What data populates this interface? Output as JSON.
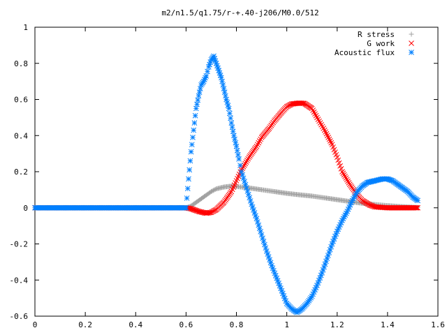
{
  "chart_data": {
    "type": "scatter",
    "title": "m2/n1.5/q1.75/r-+.40-j206/M0.0/512",
    "xlabel": "",
    "ylabel": "",
    "xlim": [
      0,
      1.6
    ],
    "ylim": [
      -0.6,
      1
    ],
    "x_ticks": [
      "0",
      "0.2",
      "0.4",
      "0.6",
      "0.8",
      "1",
      "1.2",
      "1.4",
      "1.6"
    ],
    "y_ticks": [
      "-0.6",
      "-0.4",
      "-0.2",
      "0",
      "0.2",
      "0.4",
      "0.6",
      "0.8",
      "1"
    ],
    "grid": false,
    "legend_position": "top-right",
    "series": [
      {
        "name": "R stress",
        "marker": "plus",
        "color": "#a0a0a0",
        "points": [
          [
            0,
            0
          ],
          [
            0.1,
            0
          ],
          [
            0.2,
            0
          ],
          [
            0.3,
            0
          ],
          [
            0.4,
            0
          ],
          [
            0.5,
            0
          ],
          [
            0.6,
            0
          ],
          [
            0.62,
            0.01
          ],
          [
            0.65,
            0.04
          ],
          [
            0.68,
            0.07
          ],
          [
            0.7,
            0.09
          ],
          [
            0.72,
            0.105
          ],
          [
            0.75,
            0.115
          ],
          [
            0.78,
            0.12
          ],
          [
            0.8,
            0.118
          ],
          [
            0.85,
            0.11
          ],
          [
            0.9,
            0.1
          ],
          [
            0.95,
            0.09
          ],
          [
            1.0,
            0.08
          ],
          [
            1.05,
            0.072
          ],
          [
            1.1,
            0.065
          ],
          [
            1.15,
            0.055
          ],
          [
            1.2,
            0.045
          ],
          [
            1.25,
            0.035
          ],
          [
            1.3,
            0.025
          ],
          [
            1.35,
            0.018
          ],
          [
            1.4,
            0.012
          ],
          [
            1.45,
            0.007
          ],
          [
            1.5,
            0.003
          ],
          [
            1.52,
            0.002
          ]
        ]
      },
      {
        "name": "G work",
        "marker": "cross",
        "color": "#ff0000",
        "points": [
          [
            0,
            0
          ],
          [
            0.2,
            0
          ],
          [
            0.4,
            0
          ],
          [
            0.6,
            0
          ],
          [
            0.62,
            -0.005
          ],
          [
            0.65,
            -0.02
          ],
          [
            0.68,
            -0.03
          ],
          [
            0.7,
            -0.025
          ],
          [
            0.72,
            -0.01
          ],
          [
            0.75,
            0.03
          ],
          [
            0.78,
            0.09
          ],
          [
            0.8,
            0.15
          ],
          [
            0.82,
            0.21
          ],
          [
            0.85,
            0.28
          ],
          [
            0.88,
            0.34
          ],
          [
            0.9,
            0.39
          ],
          [
            0.93,
            0.44
          ],
          [
            0.95,
            0.48
          ],
          [
            0.98,
            0.53
          ],
          [
            1.0,
            0.56
          ],
          [
            1.02,
            0.575
          ],
          [
            1.05,
            0.58
          ],
          [
            1.07,
            0.578
          ],
          [
            1.1,
            0.55
          ],
          [
            1.12,
            0.5
          ],
          [
            1.15,
            0.43
          ],
          [
            1.18,
            0.35
          ],
          [
            1.2,
            0.28
          ],
          [
            1.22,
            0.2
          ],
          [
            1.25,
            0.13
          ],
          [
            1.28,
            0.07
          ],
          [
            1.3,
            0.04
          ],
          [
            1.33,
            0.015
          ],
          [
            1.35,
            0.005
          ],
          [
            1.4,
            0
          ],
          [
            1.45,
            0
          ],
          [
            1.5,
            0
          ],
          [
            1.52,
            0
          ]
        ]
      },
      {
        "name": "Acoustic flux",
        "marker": "star",
        "color": "#0080ff",
        "points": [
          [
            0,
            0
          ],
          [
            0.1,
            0
          ],
          [
            0.2,
            0
          ],
          [
            0.3,
            0
          ],
          [
            0.4,
            0
          ],
          [
            0.5,
            0
          ],
          [
            0.6,
            0
          ],
          [
            0.61,
            0.16
          ],
          [
            0.62,
            0.31
          ],
          [
            0.63,
            0.43
          ],
          [
            0.64,
            0.55
          ],
          [
            0.65,
            0.62
          ],
          [
            0.66,
            0.68
          ],
          [
            0.67,
            0.7
          ],
          [
            0.68,
            0.73
          ],
          [
            0.69,
            0.78
          ],
          [
            0.7,
            0.82
          ],
          [
            0.71,
            0.84
          ],
          [
            0.72,
            0.8
          ],
          [
            0.73,
            0.76
          ],
          [
            0.74,
            0.72
          ],
          [
            0.75,
            0.66
          ],
          [
            0.76,
            0.6
          ],
          [
            0.77,
            0.55
          ],
          [
            0.78,
            0.47
          ],
          [
            0.79,
            0.4
          ],
          [
            0.8,
            0.34
          ],
          [
            0.81,
            0.27
          ],
          [
            0.82,
            0.2
          ],
          [
            0.84,
            0.11
          ],
          [
            0.86,
            0.02
          ],
          [
            0.88,
            -0.06
          ],
          [
            0.9,
            -0.15
          ],
          [
            0.92,
            -0.24
          ],
          [
            0.94,
            -0.32
          ],
          [
            0.96,
            -0.39
          ],
          [
            0.98,
            -0.46
          ],
          [
            1.0,
            -0.53
          ],
          [
            1.02,
            -0.56
          ],
          [
            1.04,
            -0.58
          ],
          [
            1.06,
            -0.56
          ],
          [
            1.08,
            -0.53
          ],
          [
            1.1,
            -0.49
          ],
          [
            1.12,
            -0.43
          ],
          [
            1.14,
            -0.36
          ],
          [
            1.16,
            -0.28
          ],
          [
            1.18,
            -0.2
          ],
          [
            1.2,
            -0.13
          ],
          [
            1.22,
            -0.07
          ],
          [
            1.24,
            -0.02
          ],
          [
            1.26,
            0.04
          ],
          [
            1.28,
            0.09
          ],
          [
            1.3,
            0.12
          ],
          [
            1.32,
            0.14
          ],
          [
            1.35,
            0.15
          ],
          [
            1.38,
            0.16
          ],
          [
            1.4,
            0.16
          ],
          [
            1.42,
            0.15
          ],
          [
            1.44,
            0.13
          ],
          [
            1.46,
            0.11
          ],
          [
            1.48,
            0.09
          ],
          [
            1.5,
            0.06
          ],
          [
            1.52,
            0.04
          ]
        ]
      }
    ]
  }
}
